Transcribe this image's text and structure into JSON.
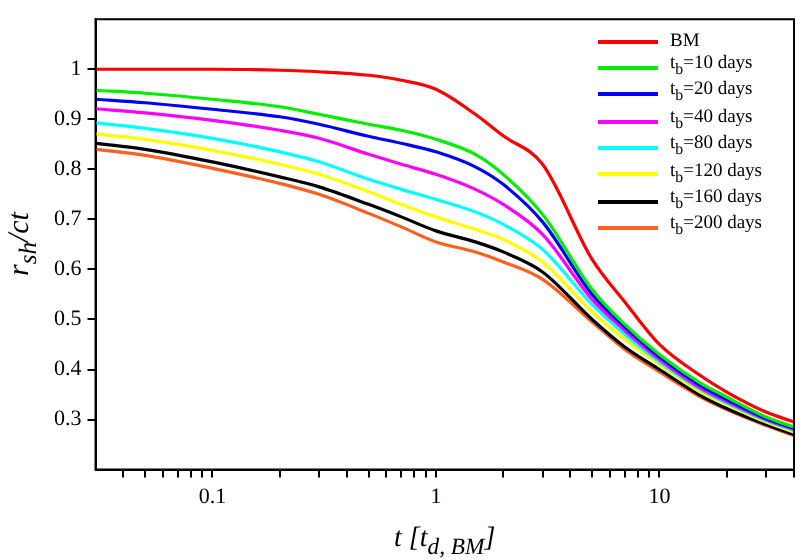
{
  "chart_data": {
    "type": "line",
    "xlabel": "t [t$_{d, BM}$]",
    "ylabel": "r$_{sh}$/ct",
    "log": "x",
    "grid": false,
    "legend": "top right",
    "marker": "none",
    "line_style": "solid",
    "x": [
      0.03,
      0.05,
      0.1,
      0.2,
      0.3,
      0.5,
      0.7,
      1,
      1.5,
      2,
      3,
      5,
      7,
      10,
      15,
      20,
      30,
      40
    ],
    "xlim": [
      0.03,
      40
    ],
    "ylim": [
      0.2,
      1.1
    ],
    "xticks": [
      {
        "value": 0.04,
        "label": null
      },
      {
        "value": 0.05,
        "label": null
      },
      {
        "value": 0.06,
        "label": null
      },
      {
        "value": 0.07,
        "label": null
      },
      {
        "value": 0.08,
        "label": null
      },
      {
        "value": 0.09,
        "label": null
      },
      0.1,
      {
        "value": 0.2,
        "label": null
      },
      {
        "value": 0.3,
        "label": null
      },
      {
        "value": 0.4,
        "label": null
      },
      {
        "value": 0.5,
        "label": null
      },
      {
        "value": 0.6,
        "label": null
      },
      {
        "value": 0.7,
        "label": null
      },
      {
        "value": 0.8,
        "label": null
      },
      {
        "value": 0.9,
        "label": null
      },
      1,
      {
        "value": 2,
        "label": null
      },
      {
        "value": 3,
        "label": null
      },
      {
        "value": 4,
        "label": null
      },
      {
        "value": 5,
        "label": null
      },
      {
        "value": 6,
        "label": null
      },
      {
        "value": 7,
        "label": null
      },
      {
        "value": 8,
        "label": null
      },
      {
        "value": 9,
        "label": null
      },
      10,
      {
        "value": 20,
        "label": null
      },
      {
        "value": 30,
        "label": null
      },
      {
        "value": 40,
        "label": null
      }
    ],
    "yticks": [
      0.3,
      0.4,
      0.5,
      0.6,
      0.7,
      0.8,
      0.9,
      1
    ],
    "series": [
      {
        "name": "BM",
        "color": "#ff0000",
        "values": [
          1,
          1,
          1,
          0.998,
          0.995,
          0.988,
          0.978,
          0.96,
          0.91,
          0.867,
          0.81,
          0.62,
          0.535,
          0.45,
          0.39,
          0.355,
          0.315,
          0.295
        ]
      },
      {
        "name": "t$_{b}$=10 days",
        "color": "#00ee00",
        "values": [
          0.958,
          0.952,
          0.94,
          0.925,
          0.91,
          0.89,
          0.878,
          0.86,
          0.83,
          0.79,
          0.71,
          0.56,
          0.49,
          0.43,
          0.375,
          0.345,
          0.305,
          0.285
        ]
      },
      {
        "name": "t$_{b}$=20 days",
        "color": "#0000ff",
        "values": [
          0.94,
          0.933,
          0.92,
          0.905,
          0.89,
          0.866,
          0.852,
          0.835,
          0.805,
          0.77,
          0.695,
          0.55,
          0.485,
          0.425,
          0.37,
          0.34,
          0.302,
          0.282
        ]
      },
      {
        "name": "t$_{b}$=40 days",
        "color": "#ff00ff",
        "values": [
          0.921,
          0.913,
          0.898,
          0.878,
          0.862,
          0.83,
          0.81,
          0.79,
          0.76,
          0.73,
          0.67,
          0.54,
          0.478,
          0.42,
          0.365,
          0.336,
          0.3,
          0.28
        ]
      },
      {
        "name": "t$_{b}$=80 days",
        "color": "#00ffff",
        "values": [
          0.893,
          0.882,
          0.862,
          0.835,
          0.815,
          0.78,
          0.76,
          0.74,
          0.715,
          0.69,
          0.64,
          0.53,
          0.47,
          0.415,
          0.362,
          0.333,
          0.298,
          0.278
        ]
      },
      {
        "name": "t$_{b}$=120 days",
        "color": "#ffff00",
        "values": [
          0.871,
          0.86,
          0.838,
          0.81,
          0.79,
          0.755,
          0.73,
          0.705,
          0.68,
          0.66,
          0.615,
          0.515,
          0.46,
          0.41,
          0.357,
          0.33,
          0.295,
          0.275
        ]
      },
      {
        "name": "t$_{b}$=160 days",
        "color": "#000000",
        "values": [
          0.852,
          0.84,
          0.815,
          0.785,
          0.765,
          0.73,
          0.705,
          0.677,
          0.655,
          0.635,
          0.595,
          0.5,
          0.445,
          0.4,
          0.35,
          0.322,
          0.29,
          0.27
        ]
      },
      {
        "name": "t$_{b}$=200 days",
        "color": "#ff6020",
        "values": [
          0.84,
          0.828,
          0.802,
          0.772,
          0.75,
          0.712,
          0.685,
          0.655,
          0.635,
          0.615,
          0.58,
          0.495,
          0.44,
          0.395,
          0.347,
          0.32,
          0.288,
          0.268
        ]
      }
    ]
  }
}
